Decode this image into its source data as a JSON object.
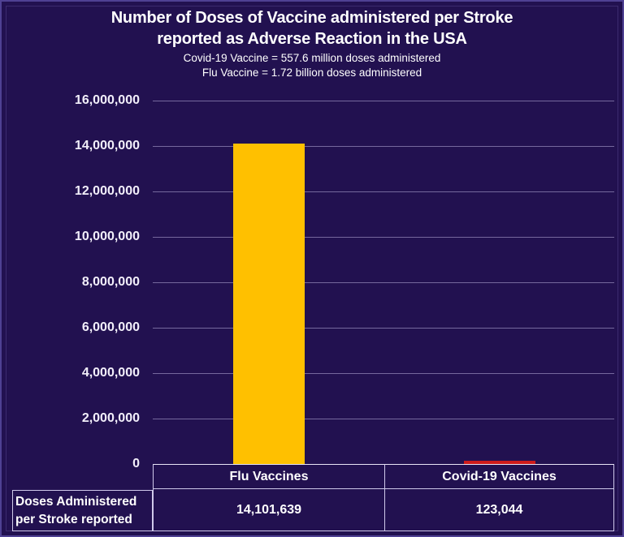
{
  "colors": {
    "background": "#221150",
    "grid": "#B9B1DC",
    "border": "#CFC9EA",
    "text": "#FFFFFF",
    "flu_bar": "#FFC000",
    "covid_bar": "#CE1B1B"
  },
  "chart_data": {
    "type": "bar",
    "title": "Number of Doses of Vaccine administered per Stroke reported as Adverse Reaction in the USA",
    "title_lines": [
      "Number of Doses of Vaccine administered per Stroke",
      "reported as Adverse Reaction in the USA"
    ],
    "subtitle_lines": [
      "Covid-19 Vaccine = 557.6 million doses administered",
      "Flu Vaccine = 1.72 billion doses administered"
    ],
    "categories": [
      "Flu Vaccines",
      "Covid-19 Vaccines"
    ],
    "series": [
      {
        "name": "Doses Administered per Stroke reported",
        "values": [
          14101639,
          123044
        ]
      }
    ],
    "value_labels": [
      "14,101,639",
      "123,044"
    ],
    "bar_colors": [
      "#FFC000",
      "#CE1B1B"
    ],
    "xlabel": "",
    "ylabel": "",
    "ylim": [
      0,
      16000000
    ],
    "ytick_interval": 2000000,
    "ytick_labels": [
      "0",
      "2,000,000",
      "4,000,000",
      "6,000,000",
      "8,000,000",
      "10,000,000",
      "12,000,000",
      "14,000,000",
      "16,000,000"
    ],
    "grid": true,
    "legend": "none"
  },
  "table": {
    "row_header_lines": [
      "Doses Administered",
      "per Stroke reported"
    ]
  }
}
